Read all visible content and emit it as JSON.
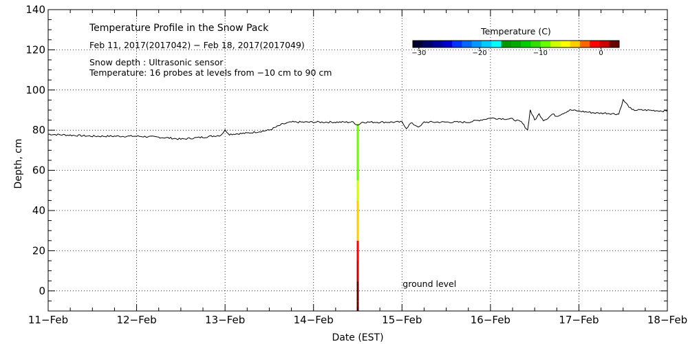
{
  "chart_data": {
    "type": "line",
    "title": "Temperature Profile in the Snow Pack",
    "subtitle": "Feb 11, 2017(2017042) − Feb 18, 2017(2017049)",
    "notes": [
      "Snow depth : Ultrasonic sensor",
      "Temperature: 16 probes at levels from −10 cm to 90 cm"
    ],
    "xlabel": "Date (EST)",
    "ylabel": "Depth, cm",
    "x_tick_labels": [
      "11−Feb",
      "12−Feb",
      "13−Feb",
      "14−Feb",
      "15−Feb",
      "16−Feb",
      "17−Feb",
      "18−Feb"
    ],
    "xlim": [
      0,
      7
    ],
    "ylim": [
      -10,
      140
    ],
    "y_ticks": [
      0,
      20,
      40,
      60,
      80,
      100,
      120,
      140
    ],
    "grid": true,
    "series": [
      {
        "name": "Snow depth",
        "x": [
          0,
          0.25,
          0.5,
          0.75,
          1.0,
          1.25,
          1.4,
          1.5,
          1.75,
          1.95,
          2.0,
          2.05,
          2.25,
          2.5,
          2.65,
          2.75,
          3.0,
          3.25,
          3.45,
          3.5,
          3.55,
          3.75,
          4.0,
          4.05,
          4.1,
          4.2,
          4.25,
          4.5,
          4.75,
          5.0,
          5.25,
          5.35,
          5.42,
          5.45,
          5.47,
          5.5,
          5.55,
          5.6,
          5.65,
          5.7,
          5.75,
          5.9,
          6.0,
          6.2,
          6.3,
          6.45,
          6.5,
          6.6,
          6.75,
          7.0
        ],
        "y": [
          78,
          77.5,
          77,
          77,
          77,
          76.5,
          76,
          75.5,
          76.5,
          77.5,
          80,
          78,
          78.5,
          80,
          83,
          84,
          84,
          84,
          84,
          82.5,
          84,
          84,
          84,
          81,
          83.5,
          81.5,
          84,
          84,
          84,
          86,
          85.5,
          84,
          80,
          90,
          88,
          85,
          88,
          85,
          86,
          88,
          87,
          90,
          89.5,
          88.5,
          88.5,
          88,
          95,
          90,
          90,
          89.5
        ]
      }
    ],
    "temperature_profile": {
      "x": 3.5,
      "levels_cm": [
        -10,
        0,
        10,
        20,
        30,
        40,
        50,
        60,
        70,
        80
      ],
      "temperature_c": [
        1.5,
        1.5,
        1.2,
        -1.5,
        -3.5,
        -5,
        -8,
        -8.5,
        -9,
        -9
      ]
    },
    "annotations": [
      {
        "text": "ground level",
        "x": 4.0,
        "y": 2
      }
    ],
    "colorbar": {
      "label": "Temperature (C)",
      "min": -31,
      "max": 3,
      "ticks": [
        -30,
        -20,
        -10,
        0
      ],
      "tick_labels": [
        "−30",
        "−20",
        "−10",
        "0"
      ],
      "colors": [
        "#000033",
        "#000066",
        "#000099",
        "#0000cc",
        "#0033ff",
        "#0066ff",
        "#0099ff",
        "#00ccff",
        "#00ffff",
        "#009900",
        "#00aa00",
        "#00cc00",
        "#33dd00",
        "#66ff00",
        "#ccff00",
        "#ffff00",
        "#ffcc00",
        "#ff6600",
        "#ff0000",
        "#cc0000",
        "#660000"
      ]
    }
  }
}
